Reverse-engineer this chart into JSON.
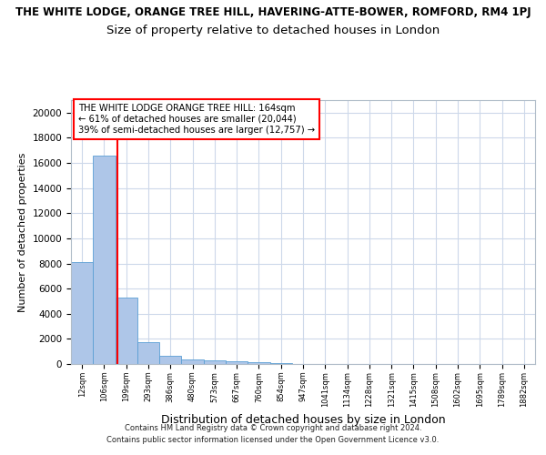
{
  "suptitle": "THE WHITE LODGE, ORANGE TREE HILL, HAVERING-ATTE-BOWER, ROMFORD, RM4 1PJ",
  "title": "Size of property relative to detached houses in London",
  "xlabel": "Distribution of detached houses by size in London",
  "ylabel": "Number of detached properties",
  "footer": "Contains HM Land Registry data © Crown copyright and database right 2024.\nContains public sector information licensed under the Open Government Licence v3.0.",
  "bar_labels": [
    "12sqm",
    "106sqm",
    "199sqm",
    "293sqm",
    "386sqm",
    "480sqm",
    "573sqm",
    "667sqm",
    "760sqm",
    "854sqm",
    "947sqm",
    "1041sqm",
    "1134sqm",
    "1228sqm",
    "1321sqm",
    "1415sqm",
    "1508sqm",
    "1602sqm",
    "1695sqm",
    "1789sqm",
    "1882sqm"
  ],
  "bar_values": [
    8100,
    16600,
    5300,
    1750,
    650,
    350,
    280,
    200,
    150,
    60,
    30,
    15,
    8,
    5,
    4,
    3,
    2,
    2,
    1,
    1,
    1
  ],
  "bar_color": "#aec6e8",
  "bar_edge_color": "#5a9fd4",
  "red_line_x": 1.62,
  "red_line_label": "THE WHITE LODGE ORANGE TREE HILL: 164sqm",
  "annotation_line1": "← 61% of detached houses are smaller (20,044)",
  "annotation_line2": "39% of semi-detached houses are larger (12,757) →",
  "annotation_box_color": "white",
  "annotation_box_edgecolor": "red",
  "ylim": [
    0,
    21000
  ],
  "yticks": [
    0,
    2000,
    4000,
    6000,
    8000,
    10000,
    12000,
    14000,
    16000,
    18000,
    20000
  ],
  "grid_color": "#cdd8ea",
  "background_color": "white"
}
